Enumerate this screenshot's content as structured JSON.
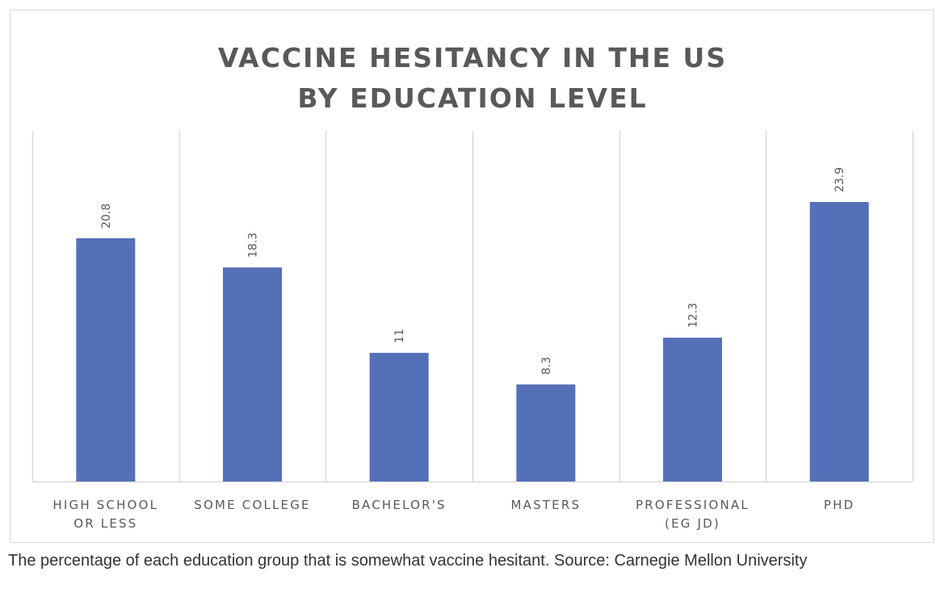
{
  "chart_data": {
    "type": "bar",
    "title_lines": [
      "VACCINE HESITANCY IN THE US",
      "BY EDUCATION LEVEL"
    ],
    "categories": [
      [
        "HIGH SCHOOL",
        "OR LESS"
      ],
      [
        "SOME COLLEGE"
      ],
      [
        "BACHELOR'S"
      ],
      [
        "MASTERS"
      ],
      [
        "PROFESSIONAL",
        "(EG JD)"
      ],
      [
        "PHD"
      ]
    ],
    "values": [
      20.8,
      18.3,
      11,
      8.3,
      12.3,
      23.9
    ],
    "value_labels": [
      "20.8",
      "18.3",
      "11",
      "8.3",
      "12.3",
      "23.9"
    ],
    "ylim": [
      0,
      30
    ],
    "grid": "vertical category separators",
    "legend": "none",
    "bar_color": "#5470b8",
    "label_color": "#595959",
    "grid_color": "#d9d9d9"
  },
  "caption": "The percentage of each education group that is somewhat vaccine hesitant. Source: Carnegie Mellon University"
}
